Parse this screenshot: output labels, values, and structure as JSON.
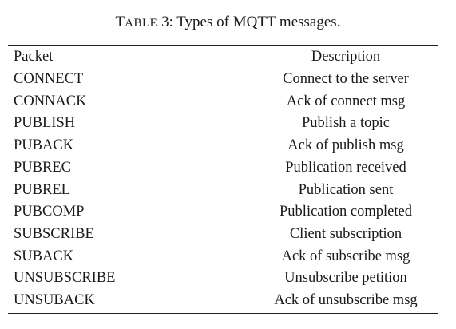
{
  "caption": {
    "label_first": "T",
    "label_rest": "ABLE",
    "label_number": "3:",
    "text": "Types of MQTT messages."
  },
  "table": {
    "headers": [
      "Packet",
      "Description"
    ],
    "rows": [
      [
        "CONNECT",
        "Connect to the server"
      ],
      [
        "CONNACK",
        "Ack of connect msg"
      ],
      [
        "PUBLISH",
        "Publish a topic"
      ],
      [
        "PUBACK",
        "Ack of publish msg"
      ],
      [
        "PUBREC",
        "Publication received"
      ],
      [
        "PUBREL",
        "Publication sent"
      ],
      [
        "PUBCOMP",
        "Publication completed"
      ],
      [
        "SUBSCRIBE",
        "Client subscription"
      ],
      [
        "SUBACK",
        "Ack of subscribe msg"
      ],
      [
        "UNSUBSCRIBE",
        "Unsubscribe petition"
      ],
      [
        "UNSUBACK",
        "Ack of unsubscribe msg"
      ]
    ]
  }
}
